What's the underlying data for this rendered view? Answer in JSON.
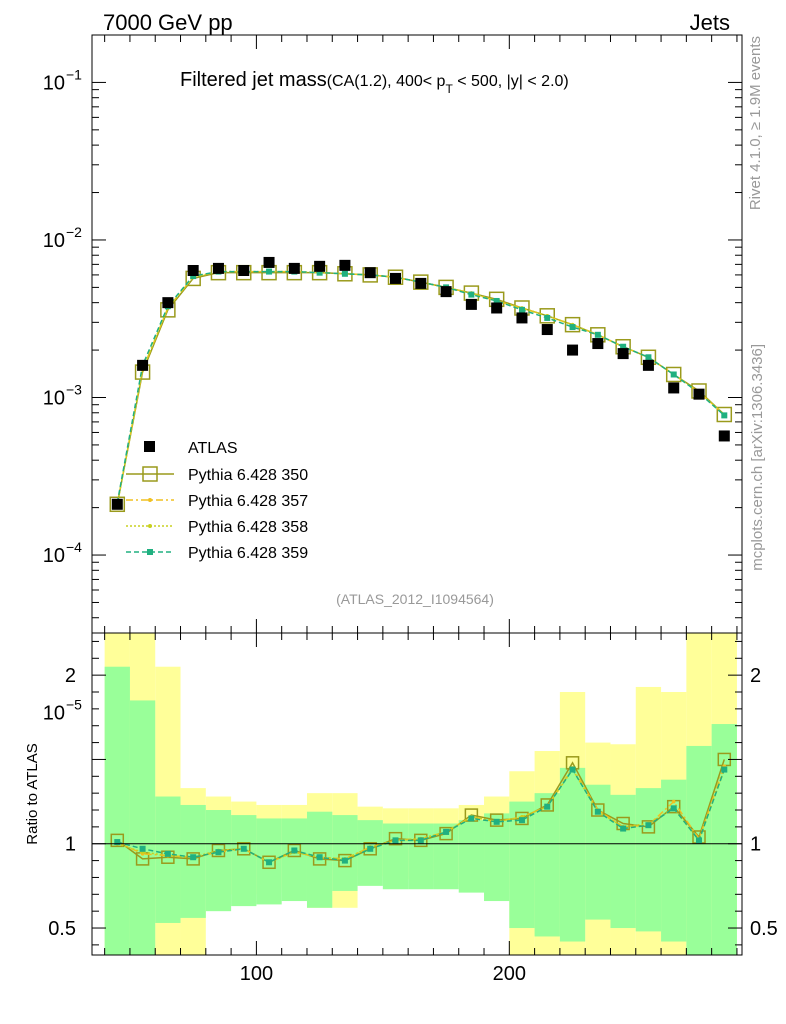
{
  "header": {
    "left": "7000 GeV pp",
    "right": "Jets"
  },
  "side": {
    "rivet": "Rivet 4.1.0, ≥ 1.9M events",
    "mcplots": "mcplots.cern.ch [arXiv:1306.3436]"
  },
  "chart_data": {
    "type": "line",
    "title_main": "Filtered jet mass",
    "title_sub": "(CA(1.2), 400< p",
    "title_sub_idx": "T",
    "title_sub_end": " < 500, |y| < 2.0)",
    "analysis_id": "(ATLAS_2012_I1094564)",
    "x": [
      45,
      55,
      65,
      75,
      85,
      95,
      105,
      115,
      125,
      135,
      145,
      155,
      165,
      175,
      185,
      195,
      205,
      215,
      225,
      235,
      245,
      255,
      265,
      275,
      285
    ],
    "xlim": [
      35,
      292
    ],
    "xticks": [
      100,
      200
    ],
    "top": {
      "yscale": "log",
      "ylim": [
        3.2e-05,
        0.2
      ],
      "yticks": [
        {
          "exp": -5,
          "label": "10",
          "sup": "−5"
        },
        {
          "exp": -4,
          "label": "10",
          "sup": "−4"
        },
        {
          "exp": -3,
          "label": "10",
          "sup": "−3"
        },
        {
          "exp": -2,
          "label": "10",
          "sup": "−2"
        },
        {
          "exp": -1,
          "label": "10",
          "sup": "−1"
        }
      ]
    },
    "data": {
      "name": "ATLAS",
      "color": "#000000",
      "values": [
        0.00021,
        0.0016,
        0.004,
        0.0064,
        0.0066,
        0.0064,
        0.0072,
        0.0066,
        0.0068,
        0.0069,
        0.0062,
        0.0057,
        0.0053,
        0.0047,
        0.0039,
        0.0037,
        0.0032,
        0.0027,
        0.002,
        0.0022,
        0.0019,
        0.0016,
        0.00115,
        0.00105,
        0.00057
      ]
    },
    "series": [
      {
        "name": "Pythia 6.428 350",
        "color": "#9a9a1c",
        "style": "solid",
        "marker": "open-square",
        "values": [
          0.00021,
          0.00145,
          0.0036,
          0.0057,
          0.0062,
          0.0062,
          0.0062,
          0.0062,
          0.0062,
          0.0061,
          0.006,
          0.0058,
          0.0054,
          0.005,
          0.0046,
          0.0042,
          0.0037,
          0.0033,
          0.0029,
          0.0025,
          0.0021,
          0.0018,
          0.0014,
          0.0011,
          0.00078
        ]
      },
      {
        "name": "Pythia 6.428 357",
        "color": "#f0c020",
        "style": "dashdot",
        "marker": "small-dot",
        "values": [
          0.00021,
          0.0015,
          0.0037,
          0.0058,
          0.0063,
          0.0063,
          0.0063,
          0.0063,
          0.0062,
          0.0061,
          0.006,
          0.0058,
          0.0054,
          0.005,
          0.0046,
          0.0041,
          0.0037,
          0.0033,
          0.0029,
          0.0025,
          0.0021,
          0.0018,
          0.0014,
          0.00108,
          0.00078
        ]
      },
      {
        "name": "Pythia 6.428 358",
        "color": "#c8d020",
        "style": "dotted",
        "marker": "small-dot",
        "values": [
          0.00021,
          0.0015,
          0.0037,
          0.0058,
          0.0063,
          0.0063,
          0.0063,
          0.0063,
          0.0062,
          0.0061,
          0.006,
          0.0058,
          0.0054,
          0.005,
          0.0046,
          0.0041,
          0.0037,
          0.0033,
          0.0029,
          0.0025,
          0.0021,
          0.0018,
          0.0014,
          0.00108,
          0.00078
        ]
      },
      {
        "name": "Pythia 6.428 359",
        "color": "#20b080",
        "style": "dashed",
        "marker": "filled-square",
        "values": [
          0.000215,
          0.0016,
          0.0038,
          0.0059,
          0.0063,
          0.0063,
          0.0063,
          0.0063,
          0.0062,
          0.0061,
          0.006,
          0.0058,
          0.0054,
          0.005,
          0.0045,
          0.0041,
          0.0036,
          0.0032,
          0.0028,
          0.0025,
          0.0021,
          0.0018,
          0.0014,
          0.00107,
          0.00077
        ]
      }
    ],
    "ratio": {
      "ylabel": "Ratio to ATLAS",
      "ylim": [
        0.34,
        2.25
      ],
      "yticks": [
        {
          "v": 0.5,
          "label": "0.5"
        },
        {
          "v": 1,
          "label": "1"
        },
        {
          "v": 2,
          "label": "2"
        }
      ],
      "band_edges": [
        40,
        50,
        60,
        70,
        80,
        90,
        100,
        110,
        120,
        130,
        140,
        150,
        160,
        170,
        180,
        190,
        200,
        210,
        220,
        230,
        240,
        250,
        260,
        270,
        280,
        290
      ],
      "band_inner_lo": [
        0.34,
        0.34,
        0.53,
        0.56,
        0.6,
        0.63,
        0.64,
        0.66,
        0.62,
        0.72,
        0.75,
        0.73,
        0.73,
        0.73,
        0.71,
        0.66,
        0.5,
        0.45,
        0.42,
        0.55,
        0.5,
        0.48,
        0.42,
        0.34,
        0.34
      ],
      "band_inner_hi": [
        2.05,
        1.85,
        1.28,
        1.23,
        1.2,
        1.17,
        1.15,
        1.15,
        1.19,
        1.17,
        1.14,
        1.12,
        1.12,
        1.12,
        1.14,
        1.18,
        1.25,
        1.3,
        1.45,
        1.35,
        1.29,
        1.33,
        1.38,
        1.58,
        1.71
      ],
      "band_outer_lo": [
        0.34,
        0.34,
        0.34,
        0.34,
        0.7,
        0.7,
        0.71,
        0.74,
        0.62,
        0.62,
        0.81,
        0.8,
        0.79,
        0.77,
        0.76,
        0.73,
        0.34,
        0.34,
        0.34,
        0.34,
        0.34,
        0.34,
        0.34,
        0.34,
        0.34
      ],
      "band_outer_hi": [
        2.25,
        2.25,
        2.05,
        1.33,
        1.28,
        1.25,
        1.23,
        1.23,
        1.3,
        1.3,
        1.22,
        1.21,
        1.21,
        1.21,
        1.23,
        1.28,
        1.43,
        1.55,
        1.9,
        1.6,
        1.59,
        1.93,
        1.9,
        2.25,
        2.25
      ],
      "series": [
        {
          "name": "Pythia 6.428 350",
          "values": [
            1.02,
            0.91,
            0.92,
            0.91,
            0.96,
            0.97,
            0.89,
            0.96,
            0.91,
            0.9,
            0.97,
            1.03,
            1.02,
            1.06,
            1.17,
            1.14,
            1.15,
            1.23,
            1.48,
            1.2,
            1.12,
            1.1,
            1.22,
            1.04,
            1.5
          ]
        },
        {
          "name": "Pythia 6.428 357",
          "values": [
            1.01,
            0.94,
            0.93,
            0.92,
            0.95,
            0.97,
            0.89,
            0.95,
            0.92,
            0.91,
            0.98,
            1.02,
            1.03,
            1.07,
            1.16,
            1.13,
            1.16,
            1.22,
            1.45,
            1.2,
            1.1,
            1.11,
            1.25,
            1.03,
            1.46
          ]
        },
        {
          "name": "Pythia 6.428 358",
          "values": [
            1.0,
            0.95,
            0.93,
            0.92,
            0.96,
            0.97,
            0.89,
            0.95,
            0.92,
            0.91,
            0.98,
            1.02,
            1.03,
            1.07,
            1.16,
            1.13,
            1.16,
            1.22,
            1.44,
            1.19,
            1.1,
            1.12,
            1.21,
            1.02,
            1.44
          ]
        },
        {
          "name": "Pythia 6.428 359",
          "values": [
            1.01,
            0.97,
            0.94,
            0.92,
            0.95,
            0.97,
            0.89,
            0.96,
            0.92,
            0.9,
            0.97,
            1.02,
            1.02,
            1.07,
            1.15,
            1.13,
            1.14,
            1.22,
            1.44,
            1.19,
            1.09,
            1.11,
            1.21,
            1.02,
            1.44
          ]
        }
      ]
    }
  }
}
